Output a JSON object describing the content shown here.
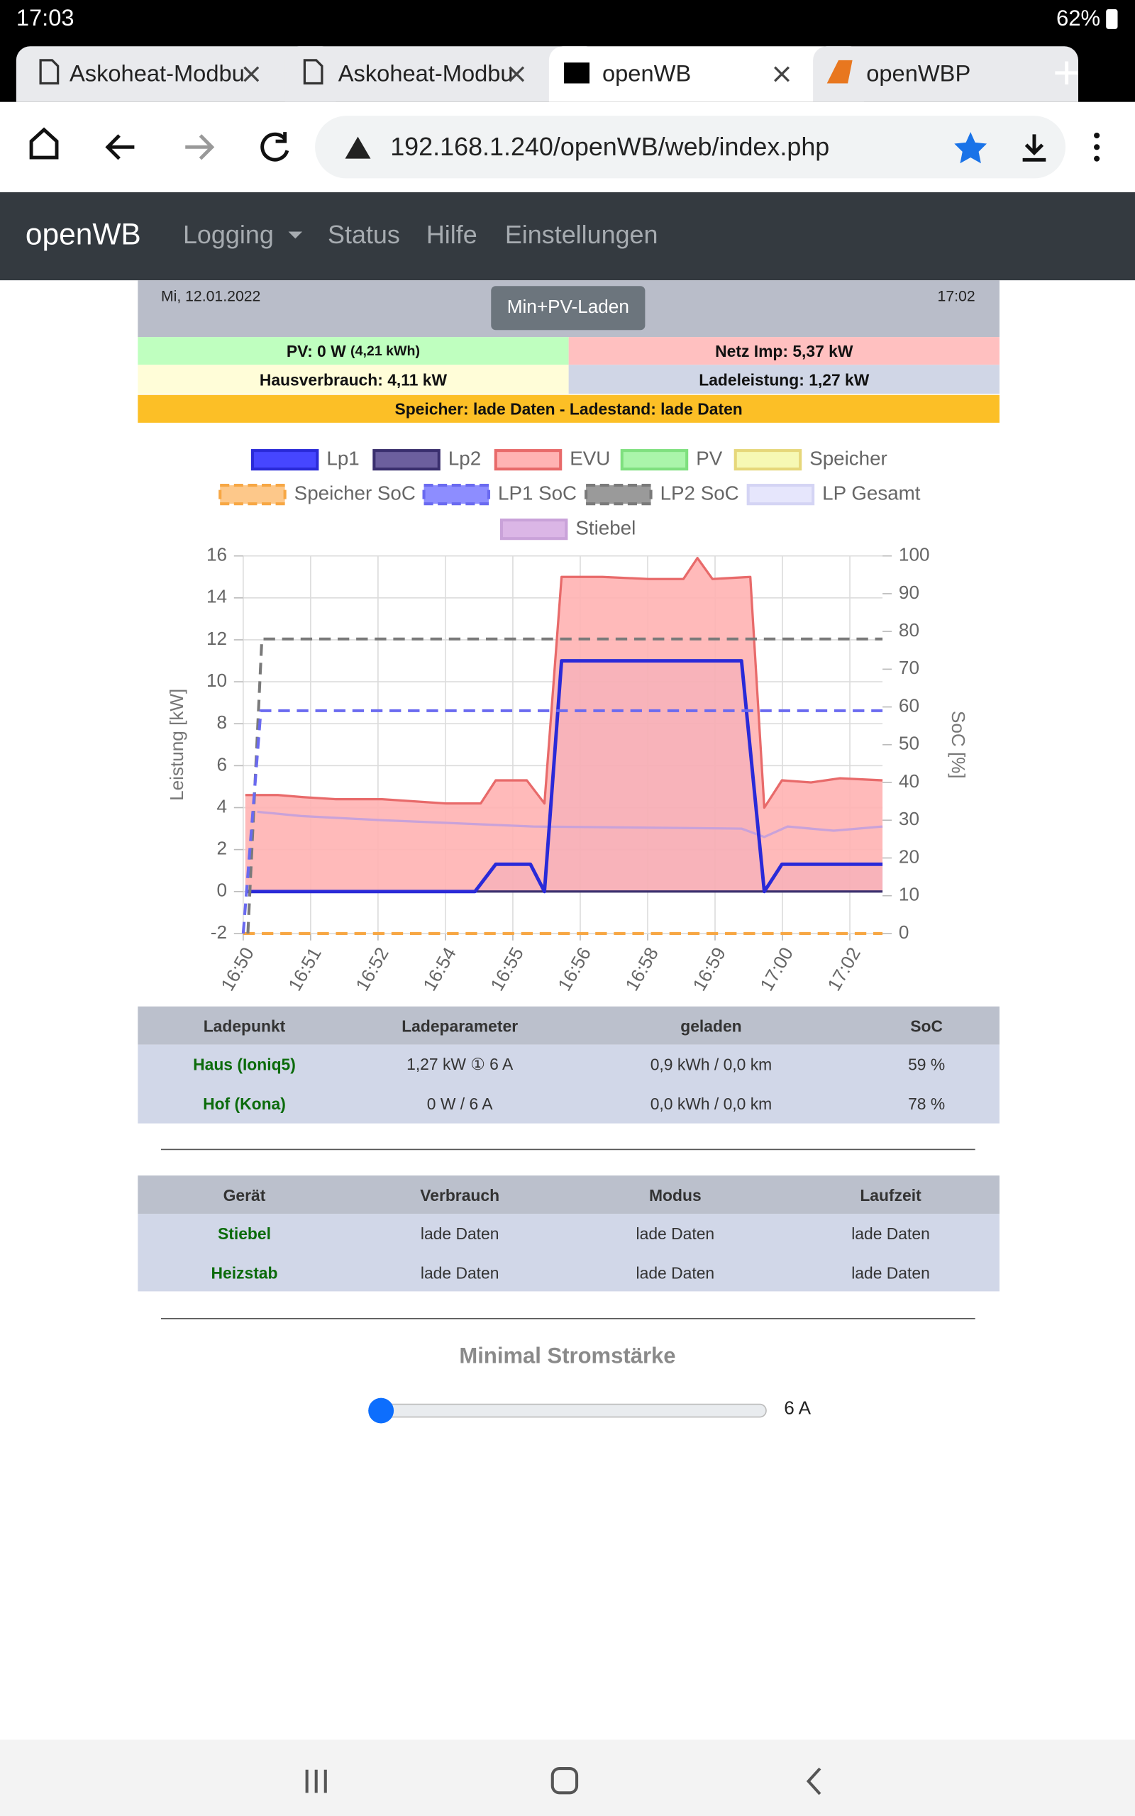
{
  "status_bar": {
    "time": "17:03",
    "battery": "62%"
  },
  "tabs": [
    "Askoheat-Modbu",
    "Askoheat-Modbu",
    "openWB",
    "openWBP"
  ],
  "url": "192.168.1.240/openWB/web/index.php",
  "navbar": {
    "brand": "openWB",
    "items": [
      "Logging",
      "Status",
      "Hilfe",
      "Einstellungen"
    ]
  },
  "header": {
    "date": "Mi, 12.01.2022",
    "mode": "Min+PV-Laden",
    "time": "17:02"
  },
  "summary": {
    "pv": "PV: 0 W",
    "pv_energy": "(4,21 kWh)",
    "grid": "Netz Imp: 5,37 kW",
    "house": "Hausverbrauch: 4,11 kW",
    "charging": "Ladeleistung: 1,27 kW",
    "storage": "Speicher: lade Daten - Ladestand: lade Daten"
  },
  "chart_data": {
    "type": "line",
    "y_label": "Leistung [kW]",
    "y2_label": "SoC [%]",
    "xlim": [
      50,
      62.33
    ],
    "xticks": [
      {
        "value": 50,
        "label": "16:50"
      },
      {
        "value": 51.3,
        "label": "16:51"
      },
      {
        "value": 52.6,
        "label": "16:52"
      },
      {
        "value": 53.9,
        "label": "16:54"
      },
      {
        "value": 55.2,
        "label": "16:55"
      },
      {
        "value": 56.5,
        "label": "16:56"
      },
      {
        "value": 57.8,
        "label": "16:58"
      },
      {
        "value": 59.1,
        "label": "16:59"
      },
      {
        "value": 60.4,
        "label": "17:00"
      },
      {
        "value": 61.7,
        "label": "17:02"
      }
    ],
    "ylim": [
      -2,
      16
    ],
    "yticks": [
      -2,
      0,
      2,
      4,
      6,
      8,
      10,
      12,
      14,
      16
    ],
    "y2lim": [
      0,
      100
    ],
    "y2ticks": [
      0,
      10,
      20,
      30,
      40,
      50,
      60,
      70,
      80,
      90,
      100
    ],
    "grid": true,
    "series": [
      {
        "name": "Lp1",
        "color": "#2a2ad8",
        "fill": "#4646ff",
        "area": true,
        "x": [
          50.04,
          54.47,
          54.87,
          55.54,
          55.81,
          56.14,
          59.61,
          60.05,
          60.39,
          62.33
        ],
        "values": [
          0,
          0,
          1.3,
          1.3,
          0,
          11.0,
          11.0,
          0,
          1.3,
          1.3
        ]
      },
      {
        "name": "Lp2",
        "color": "#3a2f6e",
        "fill": "#6c5f9e",
        "x": [
          50.04,
          62.33
        ],
        "values": [
          0,
          0
        ]
      },
      {
        "name": "EVU",
        "color": "#e86a6a",
        "fill": "#ffb3b3",
        "area": true,
        "x": [
          50.04,
          50.67,
          51.16,
          51.79,
          52.68,
          53.91,
          54.58,
          54.87,
          55.47,
          55.81,
          56.14,
          56.93,
          57.82,
          58.49,
          58.76,
          59.05,
          59.78,
          60.05,
          60.39,
          60.95,
          61.51,
          62.33
        ],
        "values": [
          4.6,
          4.6,
          4.5,
          4.4,
          4.4,
          4.2,
          4.2,
          5.3,
          5.3,
          4.2,
          15.0,
          15.0,
          14.9,
          14.9,
          15.9,
          14.9,
          15.0,
          4.0,
          5.3,
          5.2,
          5.4,
          5.3
        ]
      },
      {
        "name": "PV",
        "color": "#7fe07f",
        "fill": "#aaf5aa"
      },
      {
        "name": "Speicher",
        "color": "#e6d77a",
        "fill": "#f6f8b4"
      },
      {
        "name": "Speicher SoC",
        "color": "#f7a744",
        "fill": "#fdc88a",
        "dashed": true,
        "axis": "y2",
        "x": [
          50.0,
          62.33
        ],
        "values": [
          0,
          0
        ]
      },
      {
        "name": "LP1 SoC",
        "color": "#6a6af0",
        "fill": "#8d8dff",
        "dashed": true,
        "axis": "y2",
        "x": [
          50.0,
          50.34,
          62.33
        ],
        "values": [
          0,
          59,
          59
        ]
      },
      {
        "name": "LP2 SoC",
        "color": "#7a7a7a",
        "fill": "#9a9a9a",
        "dashed": true,
        "axis": "y2",
        "x": [
          50.09,
          50.36,
          62.33
        ],
        "values": [
          0,
          78,
          78
        ]
      },
      {
        "name": "LP Gesamt",
        "color": "#d4d4f4",
        "fill": "#e6e6fc"
      },
      {
        "name": "Stiebel",
        "color": "#c9a2d9",
        "fill": "#dbb6e6",
        "x": [
          50.27,
          51.12,
          52.68,
          55.59,
          59.61,
          60.05,
          60.5,
          61.39,
          62.33
        ],
        "values": [
          3.8,
          3.6,
          3.4,
          3.1,
          3.0,
          2.6,
          3.1,
          2.9,
          3.1
        ]
      }
    ]
  },
  "charge_table": {
    "columns": [
      "Ladepunkt",
      "Ladeparameter",
      "geladen",
      "SoC"
    ],
    "rows": [
      [
        "Haus (Ioniq5)",
        "1,27 kW ① 6 A",
        "0,9 kWh / 0,0 km",
        "59 %"
      ],
      [
        "Hof (Kona)",
        "0 W / 6 A",
        "0,0 kWh / 0,0 km",
        "78 %"
      ]
    ]
  },
  "device_table": {
    "columns": [
      "Gerät",
      "Verbrauch",
      "Modus",
      "Laufzeit"
    ],
    "rows": [
      [
        "Stiebel",
        "lade Daten",
        "lade Daten",
        "lade Daten"
      ],
      [
        "Heizstab",
        "lade Daten",
        "lade Daten",
        "lade Daten"
      ]
    ]
  },
  "slider": {
    "label": "Minimal Stromstärke",
    "value": "6 A"
  }
}
